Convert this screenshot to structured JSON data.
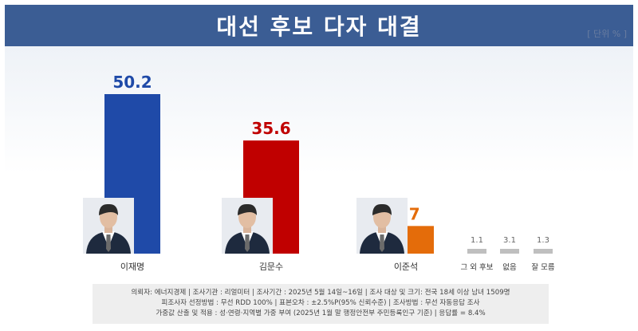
{
  "header": {
    "title": "대선 후보 다자 대결",
    "unit_note": "[ 단위 % ]"
  },
  "colors": {
    "header_bg": "#3b5d94",
    "lee": "#1f4aa8",
    "kim": "#c00000",
    "lee_js": "#e46c0a",
    "other": "#bfbfbf"
  },
  "chart_data": {
    "type": "bar",
    "categories": [
      "이재명",
      "김문수",
      "이준석",
      "그 외 후보",
      "없음",
      "잘 모름"
    ],
    "values": [
      50.2,
      35.6,
      8.7,
      1.1,
      3.1,
      1.3
    ],
    "value_labels": [
      "50.2",
      "35.6",
      "8.7",
      "1.1",
      "3.1",
      "1.3"
    ],
    "bar_colors": [
      "#1f4aa8",
      "#c00000",
      "#e46c0a",
      "#bfbfbf",
      "#bfbfbf",
      "#bfbfbf"
    ],
    "candidate_photos": [
      "lee-jae-myung-photo-icon",
      "kim-moon-soo-photo-icon",
      "lee-jun-seok-photo-icon"
    ],
    "ylim": [
      0,
      60
    ],
    "grid": false,
    "legend": "none",
    "title": "대선 후보 다자 대결"
  },
  "footer": {
    "line1": "의뢰자: 에너지경제 | 조사기관 : 리얼미터  |  조사기간 : 2025년 5월 14일~16일 | 조사 대상 및 크기: 전국 18세 이상 남녀 1509명",
    "line2": "피조사자 선정방법 : 무선 RDD 100% | 표본오차 : ±2.5%P(95% 신뢰수준) | 조사방법 : 무선 자동응답 조사",
    "line3": "가중값 산출 및 적용 : 성·연령·지역별 가중 부여 (2025년 1월 말 행정안전부 주민등록인구 기준) | 응답률 = 8.4%"
  }
}
